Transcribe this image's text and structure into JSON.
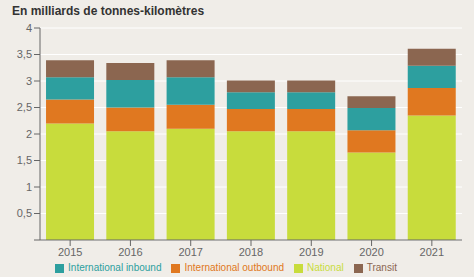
{
  "chart_data": {
    "type": "bar",
    "title": "En milliards de tonnes-kilomètres",
    "categories": [
      "2015",
      "2016",
      "2017",
      "2018",
      "2019",
      "2020",
      "2021"
    ],
    "series": [
      {
        "name": "National",
        "color": "#c8dc3c",
        "values": [
          2.2,
          2.05,
          2.1,
          2.05,
          2.05,
          1.65,
          2.35
        ]
      },
      {
        "name": "International outbound",
        "color": "#e07820",
        "values": [
          0.45,
          0.45,
          0.45,
          0.42,
          0.42,
          0.42,
          0.52
        ]
      },
      {
        "name": "International inbound",
        "color": "#2d9f9f",
        "values": [
          0.42,
          0.52,
          0.52,
          0.32,
          0.32,
          0.42,
          0.42
        ]
      },
      {
        "name": "Transit",
        "color": "#8b6650",
        "values": [
          0.32,
          0.32,
          0.32,
          0.22,
          0.22,
          0.22,
          0.32
        ]
      }
    ],
    "stacked": true,
    "ylim": [
      0,
      4
    ],
    "yticks": [
      {
        "value": 0,
        "label": ""
      },
      {
        "value": 0.5,
        "label": "0,5"
      },
      1,
      {
        "value": 1.5,
        "label": "1,5"
      },
      2,
      {
        "value": 2.5,
        "label": "2,5"
      },
      3,
      {
        "value": 3.5,
        "label": "3,5"
      },
      4
    ],
    "grid": true,
    "legend": "bottom"
  }
}
